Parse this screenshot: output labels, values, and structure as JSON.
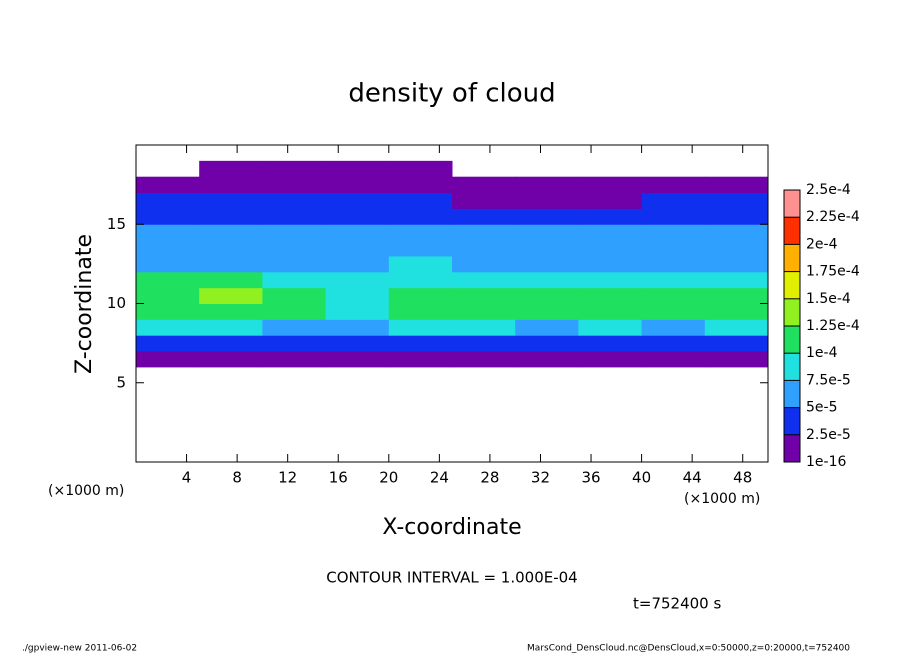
{
  "chart_data": {
    "type": "heatmap",
    "title": "density of cloud",
    "x_label": "X-coordinate",
    "y_label": "Z-coordinate",
    "x_unit_label": "(×1000 m)",
    "x_unit_label_right": "(×1000 m)",
    "contour_note": "CONTOUR INTERVAL = 1.000E-04",
    "time_label": "t=752400 s",
    "footer_left": "./gpview-new  2011-06-02",
    "footer_right": "MarsCond_DensCloud.nc@DensCloud,x=0:50000,z=0:20000,t=752400",
    "xlim": [
      0,
      50
    ],
    "xticks": [
      4,
      8,
      12,
      16,
      20,
      24,
      28,
      32,
      36,
      40,
      44,
      48
    ],
    "ylim": [
      0,
      20
    ],
    "yticks": [
      5,
      10,
      15
    ],
    "x": [
      2.5,
      7.5,
      12.5,
      17.5,
      22.5,
      27.5,
      32.5,
      37.5,
      42.5,
      47.5
    ],
    "y": [
      6.5,
      7.5,
      8.5,
      9.5,
      10.5,
      11.5,
      12.5,
      13.5,
      14.5,
      15.5,
      16.5,
      17.5,
      18.5
    ],
    "values": [
      [
        1e-05,
        1e-05,
        1e-05,
        1e-05,
        1e-05,
        1e-05,
        1e-05,
        1e-05,
        1e-05,
        1e-05
      ],
      [
        3e-05,
        3e-05,
        4e-05,
        3e-05,
        3e-05,
        4e-05,
        3e-05,
        3e-05,
        4e-05,
        3e-05
      ],
      [
        8e-05,
        9e-05,
        7e-05,
        7e-05,
        8e-05,
        8e-05,
        7e-05,
        8e-05,
        7e-05,
        8e-05
      ],
      [
        0.00011,
        0.00012,
        0.00011,
        9e-05,
        0.0001,
        0.00011,
        0.00011,
        0.0001,
        0.00011,
        0.00011
      ],
      [
        0.00012,
        0.00013,
        0.00012,
        9e-05,
        0.0001,
        0.00011,
        0.00011,
        0.00011,
        0.00011,
        0.00011
      ],
      [
        0.0001,
        0.00011,
        9e-05,
        8e-05,
        9e-05,
        8e-05,
        8e-05,
        8e-05,
        9e-05,
        9e-05
      ],
      [
        7e-05,
        7e-05,
        7e-05,
        7e-05,
        8e-05,
        7e-05,
        7e-05,
        6e-05,
        6e-05,
        7e-05
      ],
      [
        6e-05,
        6e-05,
        6e-05,
        6e-05,
        6e-05,
        6e-05,
        5e-05,
        6e-05,
        6e-05,
        6e-05
      ],
      [
        6e-05,
        6e-05,
        6e-05,
        6e-05,
        5e-05,
        5e-05,
        5e-05,
        5e-05,
        5e-05,
        6e-05
      ],
      [
        4e-05,
        4e-05,
        4e-05,
        4e-05,
        4e-05,
        3e-05,
        3e-05,
        4e-05,
        4e-05,
        4e-05
      ],
      [
        3e-05,
        3e-05,
        3e-05,
        3e-05,
        3e-05,
        2e-05,
        2e-05,
        2e-05,
        3e-05,
        3e-05
      ],
      [
        1e-05,
        1e-05,
        1e-05,
        1e-05,
        1e-05,
        1e-05,
        1e-05,
        1e-05,
        1e-05,
        1e-05
      ],
      [
        null,
        1e-05,
        1e-05,
        1e-05,
        1e-05,
        null,
        null,
        null,
        null,
        null
      ]
    ],
    "colorbar_levels": [
      {
        "value": 1e-16,
        "label": "1e-16"
      },
      {
        "value": 2.5e-05,
        "label": "2.5e-5"
      },
      {
        "value": 5e-05,
        "label": "5e-5"
      },
      {
        "value": 7.5e-05,
        "label": "7.5e-5"
      },
      {
        "value": 0.0001,
        "label": "1e-4"
      },
      {
        "value": 0.000125,
        "label": "1.25e-4"
      },
      {
        "value": 0.00015,
        "label": "1.5e-4"
      },
      {
        "value": 0.000175,
        "label": "1.75e-4"
      },
      {
        "value": 0.0002,
        "label": "2e-4"
      },
      {
        "value": 0.000225,
        "label": "2.25e-4"
      },
      {
        "value": 0.00025,
        "label": "2.5e-4"
      }
    ],
    "colors": [
      "#7000a8",
      "#1030f0",
      "#30a0ff",
      "#20e0e0",
      "#20e060",
      "#90f020",
      "#e0f000",
      "#ffb000",
      "#ff3000",
      "#ff9090"
    ]
  }
}
